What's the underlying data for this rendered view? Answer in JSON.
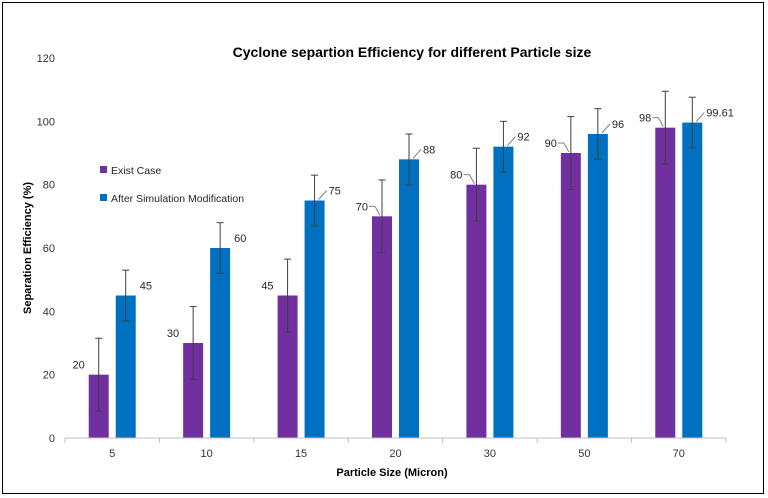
{
  "chart_data": {
    "type": "bar",
    "title": "Cyclone separtion Efficiency for different Particle size",
    "xlabel": "Particle Size (Micron)",
    "ylabel": "Separation Efficiency (%)",
    "categories": [
      "5",
      "10",
      "15",
      "20",
      "30",
      "50",
      "70"
    ],
    "ylim": [
      0,
      120
    ],
    "yticks": [
      0,
      20,
      40,
      60,
      80,
      100,
      120
    ],
    "grid": false,
    "legend_position": "left",
    "series": [
      {
        "name": "Exist Case",
        "color": "#7030A0",
        "values": [
          20,
          30,
          45,
          70,
          80,
          90,
          98
        ],
        "labels": [
          "20",
          "30",
          "45",
          "70",
          "80",
          "90",
          "98"
        ],
        "error": [
          11.5,
          11.5,
          11.5,
          11.5,
          11.5,
          11.5,
          11.5
        ]
      },
      {
        "name": "After Simulation Modification",
        "color": "#0070C0",
        "values": [
          45,
          60,
          75,
          88,
          92,
          96,
          99.61
        ],
        "labels": [
          "45",
          "60",
          "75",
          "88",
          "92",
          "96",
          "99.61"
        ],
        "error": [
          8,
          8,
          8,
          8,
          8,
          8,
          8
        ]
      }
    ]
  }
}
